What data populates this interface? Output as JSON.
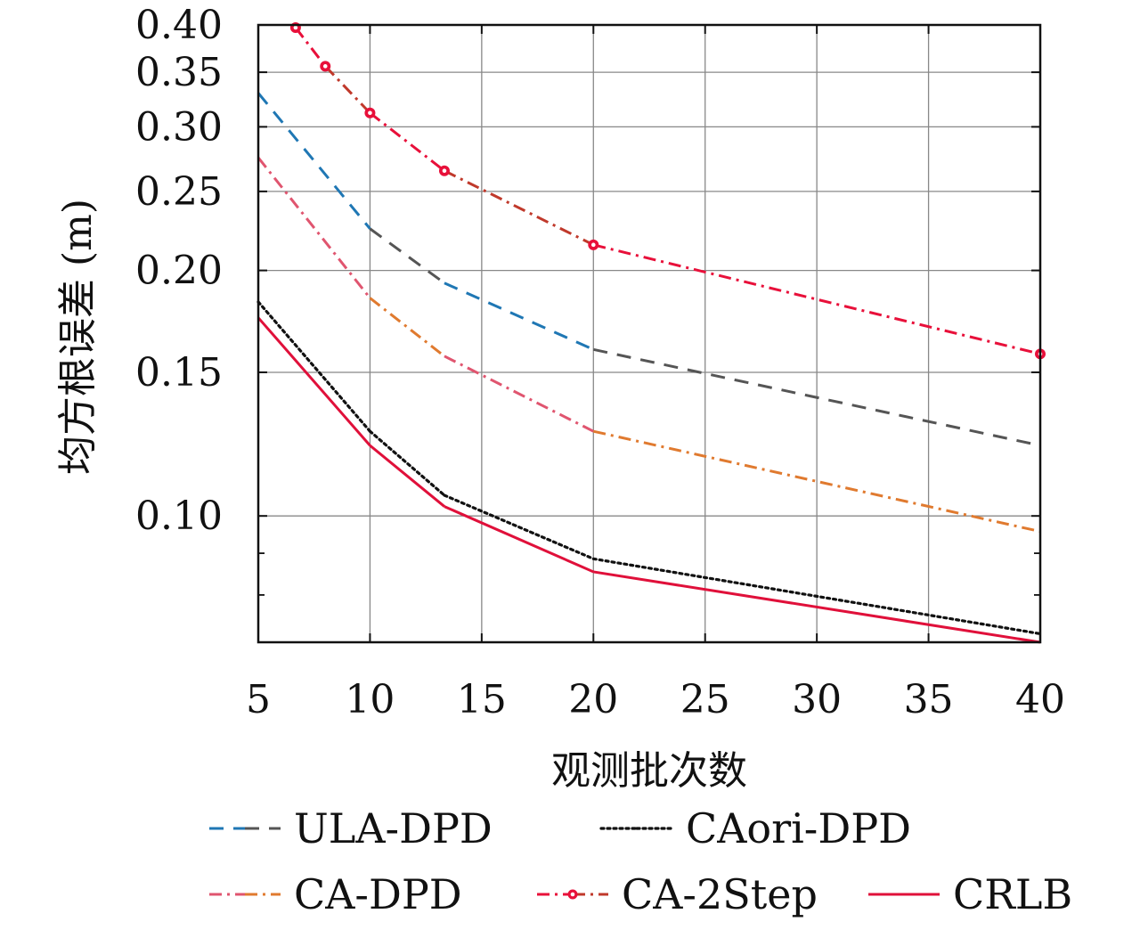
{
  "chart_data": {
    "type": "line",
    "title": "",
    "xlabel": "观测批次数",
    "ylabel": "均方根误差 (m)",
    "x_scale": "linear",
    "y_scale": "log",
    "xlim": [
      5,
      40
    ],
    "ylim": [
      0.07,
      0.4
    ],
    "x_ticks": [
      5,
      10,
      15,
      20,
      25,
      30,
      35,
      40
    ],
    "x_tick_labels": [
      "5",
      "10",
      "15",
      "20",
      "25",
      "30",
      "35",
      "40"
    ],
    "y_ticks": [
      0.1,
      0.15,
      0.2,
      0.25,
      0.3,
      0.35,
      0.4
    ],
    "y_tick_labels": [
      "0.10",
      "0.15",
      "0.20",
      "0.25",
      "0.30",
      "0.35",
      "0.40"
    ],
    "y_minor_ticks": [
      0.07,
      0.08,
      0.09
    ],
    "grid": true,
    "legend_position": "bottom",
    "series": [
      {
        "name": "ULA-DPD",
        "style": "dashed",
        "colors": [
          "#1f77b4",
          "#555555"
        ],
        "marker": "none",
        "x": [
          5,
          10,
          13.33,
          20,
          40
        ],
        "y": [
          0.33,
          0.225,
          0.193,
          0.16,
          0.122
        ]
      },
      {
        "name": "CAori-DPD",
        "style": "dotted",
        "colors": [
          "#111111"
        ],
        "marker": "none",
        "x": [
          5,
          10,
          13.33,
          20,
          40
        ],
        "y": [
          0.183,
          0.127,
          0.106,
          0.0886,
          0.0717
        ]
      },
      {
        "name": "CA-DPD",
        "style": "dashdot",
        "colors": [
          "#e0556f",
          "#e07a2f"
        ],
        "marker": "none",
        "x": [
          5,
          10,
          13.33,
          20,
          40
        ],
        "y": [
          0.275,
          0.185,
          0.157,
          0.127,
          0.0957
        ]
      },
      {
        "name": "CA-2Step",
        "style": "dashdot",
        "colors": [
          "#e8103a",
          "#c0392b"
        ],
        "marker": "circle",
        "x": [
          6.67,
          8,
          10,
          13.33,
          20,
          40
        ],
        "y": [
          0.397,
          0.356,
          0.312,
          0.265,
          0.215,
          0.158
        ]
      },
      {
        "name": "CRLB",
        "style": "solid",
        "colors": [
          "#e0103a"
        ],
        "marker": "none",
        "x": [
          5,
          10,
          13.33,
          20,
          40
        ],
        "y": [
          0.175,
          0.122,
          0.1027,
          0.0854,
          0.07
        ]
      }
    ]
  }
}
